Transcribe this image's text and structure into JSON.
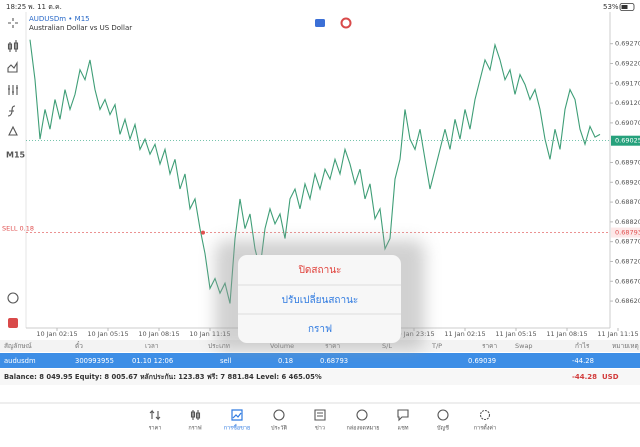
{
  "status_bar": {
    "time": "18:25",
    "date": "พ. 11 ต.ค.",
    "battery": "53%"
  },
  "chart": {
    "type": "line",
    "symbol": "AUDUSDm • M15",
    "description": "Australian Dollar vs US Dollar",
    "timeframe": "M15",
    "series": [
      {
        "color": "#3f9e77",
        "values": [
          0.6928,
          0.69179,
          0.69029,
          0.69104,
          0.69054,
          0.69129,
          0.69079,
          0.69154,
          0.69104,
          0.69142,
          0.69204,
          0.69179,
          0.69229,
          0.69154,
          0.69104,
          0.69129,
          0.69091,
          0.69116,
          0.69041,
          0.69079,
          0.69029,
          0.69066,
          0.69003,
          0.69029,
          0.68991,
          0.69016,
          0.68966,
          0.69003,
          0.68941,
          0.68978,
          0.68903,
          0.68941,
          0.68853,
          0.68878,
          0.68803,
          0.6874,
          0.68652,
          0.68677,
          0.6864,
          0.68665,
          0.68614,
          0.68778,
          0.68878,
          0.68803,
          0.6884,
          0.68752,
          0.68702,
          0.68803,
          0.68853,
          0.68815,
          0.6884,
          0.68778,
          0.68878,
          0.68903,
          0.68853,
          0.68916,
          0.68878,
          0.68941,
          0.68903,
          0.68953,
          0.68928,
          0.68978,
          0.68941,
          0.69003,
          0.68966,
          0.68916,
          0.68953,
          0.68878,
          0.68916,
          0.68828,
          0.68853,
          0.68752,
          0.68778,
          0.68928,
          0.68978,
          0.69104,
          0.69029,
          0.69003,
          0.69054,
          0.68978,
          0.68903,
          0.68953,
          0.69003,
          0.69054,
          0.69003,
          0.69079,
          0.69029,
          0.69104,
          0.69054,
          0.69129,
          0.69179,
          0.69229,
          0.69204,
          0.69267,
          0.69229,
          0.69179,
          0.69204,
          0.69142,
          0.69192,
          0.69167,
          0.69129,
          0.69154,
          0.69104,
          0.69029,
          0.68978,
          0.69054,
          0.69003,
          0.69104,
          0.69154,
          0.69129,
          0.69054,
          0.69016,
          0.69061,
          0.69034,
          0.69041
        ]
      }
    ],
    "ylim": [
      0.68552,
      0.6935
    ],
    "yticks": [
      {
        "value": 0.6862,
        "label": "0.68620"
      },
      {
        "value": 0.6867,
        "label": "0.68670"
      },
      {
        "value": 0.6872,
        "label": "0.68720"
      },
      {
        "value": 0.6877,
        "label": "0.68770"
      },
      {
        "value": 0.6882,
        "label": "0.68820"
      },
      {
        "value": 0.6887,
        "label": "0.68870"
      },
      {
        "value": 0.6892,
        "label": "0.68920"
      },
      {
        "value": 0.6897,
        "label": "0.68970"
      },
      {
        "value": 0.6907,
        "label": "0.69070"
      },
      {
        "value": 0.6912,
        "label": "0.69120"
      },
      {
        "value": 0.6917,
        "label": "0.69170"
      },
      {
        "value": 0.6922,
        "label": "0.69220"
      },
      {
        "value": 0.6927,
        "label": "0.69270"
      }
    ],
    "xtick_labels": [
      "10 Jan 02:15",
      "10 Jan 05:15",
      "10 Jan 08:15",
      "10 Jan 11:15",
      null,
      null,
      null,
      "10 Jan 23:15",
      "11 Jan 02:15",
      "11 Jan 05:15",
      "11 Jan 08:15",
      "11 Jan 11:15"
    ],
    "sell_line": {
      "label": "SELL 0.18",
      "value": 0.68793,
      "value_label": "0.68793",
      "color": "#e05050"
    },
    "price_line": {
      "value": 0.69025,
      "value_label": "0.69025",
      "color": "#26a17c"
    }
  },
  "positions": {
    "columns": [
      "สัญลักษณ์",
      "ตั๋ว",
      "เวลา",
      "ประเภท",
      "Volume",
      "ราคา",
      "S/L",
      "T/P",
      "ราคา",
      "Swap",
      "กำไร",
      "หมายเหตุ"
    ],
    "row": {
      "symbol": "audusdm",
      "ticket": "300993955",
      "time": "01.10 12:06",
      "type": "sell",
      "volume": "0.18",
      "price": "0.68793",
      "current": "0.69039",
      "profit": "-44.28"
    }
  },
  "balance": {
    "text": "Balance: 8 049.95 Equity: 8 005.67 หลักประกัน: 123.83 ฟรี: 7 881.84 Level: 6 465.05%",
    "profit": "-44.28",
    "currency": "USD"
  },
  "menu": [
    "ปิดสถานะ",
    "ปรับเปลี่ยนสถานะ",
    "กราฟ"
  ],
  "tabs": [
    "ราคา",
    "กราฟ",
    "การซื้อขาย",
    "ประวัติ",
    "ข่าว",
    "กล่องจดหมาย",
    "แชท",
    "บัญชี",
    "การตั้งค่า"
  ]
}
